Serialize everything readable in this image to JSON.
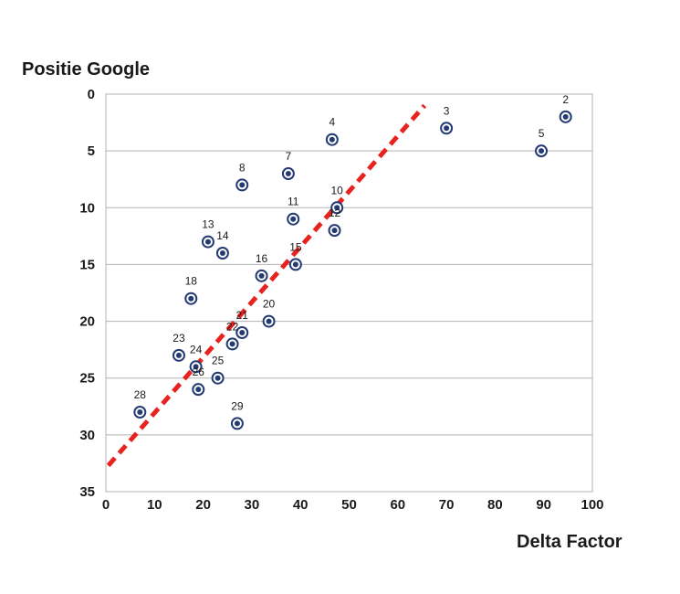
{
  "chart_data": {
    "type": "scatter",
    "xlabel": "Delta Factor",
    "ylabel": "Positie Google",
    "xlim": [
      0,
      100
    ],
    "ylim": [
      0,
      35
    ],
    "y_axis_inverted": true,
    "x_ticks": [
      "0",
      "10",
      "20",
      "30",
      "40",
      "50",
      "60",
      "70",
      "80",
      "90",
      "100"
    ],
    "y_ticks": [
      "0",
      "5",
      "10",
      "15",
      "20",
      "25",
      "30",
      "35"
    ],
    "grid": "horizontal",
    "marker_color": "#243a73",
    "points": [
      {
        "label": "2",
        "x": 94.5,
        "y": 2
      },
      {
        "label": "3",
        "x": 70,
        "y": 3
      },
      {
        "label": "4",
        "x": 46.5,
        "y": 4
      },
      {
        "label": "5",
        "x": 89.5,
        "y": 5
      },
      {
        "label": "7",
        "x": 37.5,
        "y": 7
      },
      {
        "label": "8",
        "x": 28,
        "y": 8
      },
      {
        "label": "10",
        "x": 47.5,
        "y": 10
      },
      {
        "label": "11",
        "x": 38.5,
        "y": 11
      },
      {
        "label": "12",
        "x": 47,
        "y": 12
      },
      {
        "label": "13",
        "x": 21,
        "y": 13
      },
      {
        "label": "14",
        "x": 24,
        "y": 14
      },
      {
        "label": "15",
        "x": 39,
        "y": 15
      },
      {
        "label": "16",
        "x": 32,
        "y": 16
      },
      {
        "label": "18",
        "x": 17.5,
        "y": 18
      },
      {
        "label": "20",
        "x": 33.5,
        "y": 20
      },
      {
        "label": "21",
        "x": 28,
        "y": 21
      },
      {
        "label": "22",
        "x": 26,
        "y": 22
      },
      {
        "label": "23",
        "x": 15,
        "y": 23
      },
      {
        "label": "24",
        "x": 18.5,
        "y": 24
      },
      {
        "label": "25",
        "x": 23,
        "y": 25
      },
      {
        "label": "26",
        "x": 19,
        "y": 26
      },
      {
        "label": "28",
        "x": 7,
        "y": 28
      },
      {
        "label": "29",
        "x": 27,
        "y": 29
      }
    ],
    "trendline": {
      "style": "dashed",
      "color": "#e8231f",
      "from": {
        "x": 0.5,
        "y": 32.7
      },
      "to": {
        "x": 65.5,
        "y": 1
      }
    }
  }
}
